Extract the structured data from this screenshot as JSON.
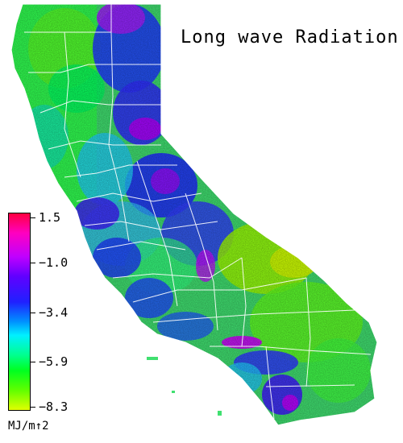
{
  "title": "Long wave Radiation",
  "legend": {
    "units": "MJ/m↑2",
    "ticks": [
      "1.5",
      "−1.0",
      "−3.4",
      "−5.9",
      "−8.3"
    ],
    "colors": [
      "#ff0040",
      "#ff00c0",
      "#c000ff",
      "#6000ff",
      "#2020ff",
      "#0090ff",
      "#00f0ff",
      "#00ff90",
      "#00ff20",
      "#60ff00",
      "#e0ff00"
    ]
  },
  "map": {
    "region": "California",
    "features": [
      "county-boundaries"
    ]
  }
}
